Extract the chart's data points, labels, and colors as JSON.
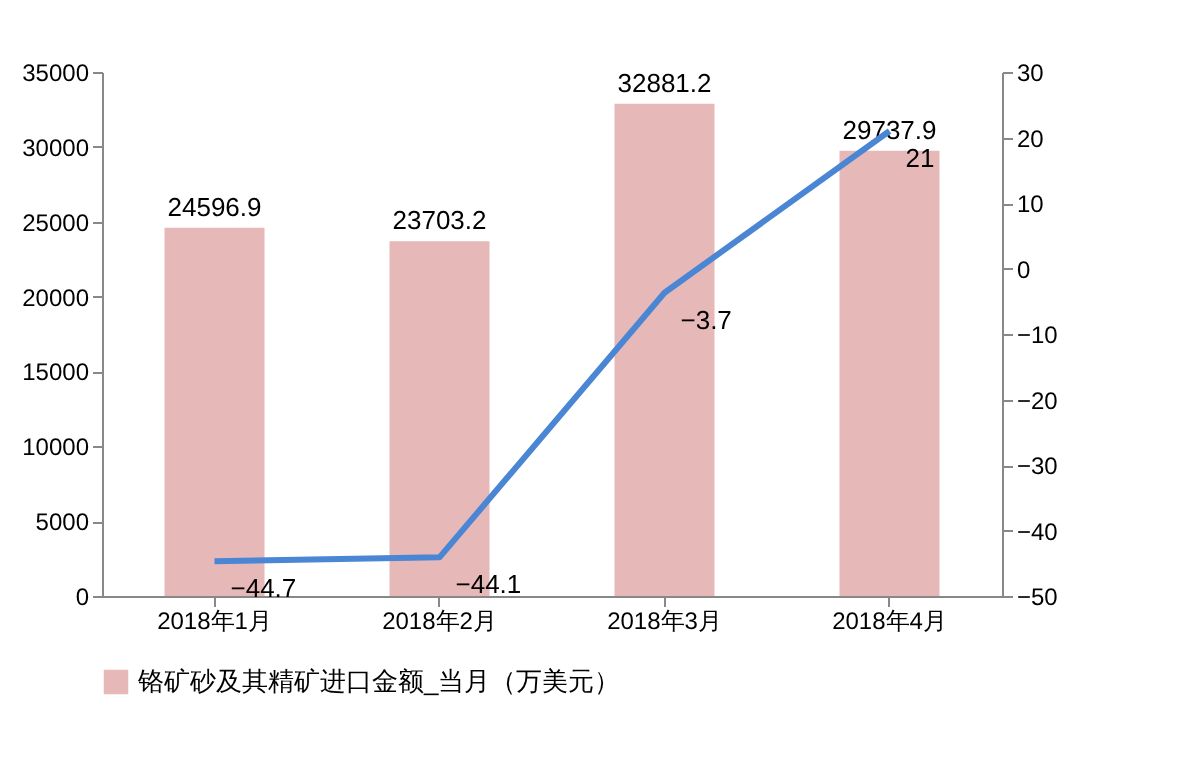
{
  "chart_data": {
    "type": "bar",
    "categories": [
      "2018年1月",
      "2018年2月",
      "2018年3月",
      "2018年4月"
    ],
    "series": [
      {
        "name": "铬矿砂及其精矿进口金额_当月（万美元）",
        "color": "#e6b9b8",
        "values": [
          24596.9,
          23703.2,
          32881.2,
          29737.9
        ]
      },
      {
        "type": "line",
        "axis": "y2",
        "color": "#4a86d4",
        "values": [
          -44.7,
          -44.1,
          -3.7,
          21
        ]
      }
    ],
    "ylim": [
      0,
      35000
    ],
    "yticks": [
      0,
      5000,
      10000,
      15000,
      20000,
      25000,
      30000,
      35000
    ],
    "y2lim": [
      -50,
      30
    ],
    "y2ticks": [
      -50,
      -40,
      -30,
      -20,
      -10,
      0,
      10,
      20,
      30
    ],
    "data_labels": true,
    "grid": false,
    "legend": "bottom"
  }
}
